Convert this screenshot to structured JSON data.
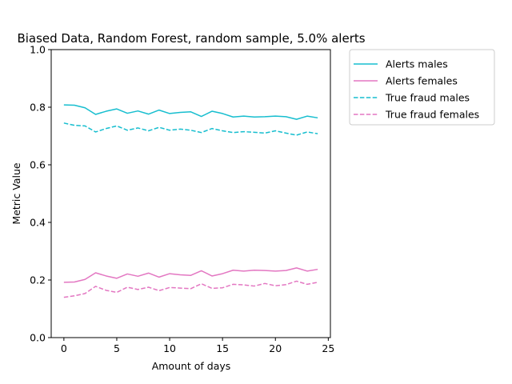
{
  "chart_data": {
    "type": "line",
    "title": "Biased Data, Random Forest, random sample, 5.0% alerts",
    "xlabel": "Amount of days",
    "ylabel": "Metric Value",
    "xlim": [
      -1.2,
      25.2
    ],
    "ylim": [
      0.0,
      1.0
    ],
    "xticks": [
      0,
      5,
      10,
      15,
      20,
      25
    ],
    "yticks": [
      0.0,
      0.2,
      0.4,
      0.6,
      0.8,
      1.0
    ],
    "xtick_labels": [
      "0",
      "5",
      "10",
      "15",
      "20",
      "25"
    ],
    "ytick_labels": [
      "0.0",
      "0.2",
      "0.4",
      "0.6",
      "0.8",
      "1.0"
    ],
    "grid": false,
    "legend_position": "outside-top-right",
    "x": [
      0,
      1,
      2,
      3,
      4,
      5,
      6,
      7,
      8,
      9,
      10,
      11,
      12,
      13,
      14,
      15,
      16,
      17,
      18,
      19,
      20,
      21,
      22,
      23,
      24
    ],
    "series": [
      {
        "name": "Alerts males",
        "color": "#17becf",
        "dash": "solid",
        "values": [
          0.808,
          0.807,
          0.798,
          0.775,
          0.786,
          0.794,
          0.779,
          0.787,
          0.776,
          0.79,
          0.778,
          0.782,
          0.784,
          0.768,
          0.786,
          0.778,
          0.766,
          0.769,
          0.766,
          0.767,
          0.769,
          0.767,
          0.758,
          0.769,
          0.763
        ]
      },
      {
        "name": "Alerts females",
        "color": "#e377c2",
        "dash": "solid",
        "values": [
          0.192,
          0.193,
          0.202,
          0.225,
          0.214,
          0.206,
          0.221,
          0.213,
          0.224,
          0.21,
          0.222,
          0.218,
          0.216,
          0.232,
          0.214,
          0.222,
          0.234,
          0.231,
          0.234,
          0.233,
          0.231,
          0.233,
          0.242,
          0.231,
          0.237
        ]
      },
      {
        "name": "True fraud males",
        "color": "#17becf",
        "dash": "dashed",
        "values": [
          0.745,
          0.737,
          0.735,
          0.714,
          0.726,
          0.735,
          0.72,
          0.728,
          0.718,
          0.73,
          0.72,
          0.724,
          0.72,
          0.712,
          0.726,
          0.718,
          0.712,
          0.715,
          0.713,
          0.71,
          0.718,
          0.71,
          0.703,
          0.714,
          0.708
        ]
      },
      {
        "name": "True fraud females",
        "color": "#e377c2",
        "dash": "dashed",
        "values": [
          0.14,
          0.145,
          0.153,
          0.178,
          0.164,
          0.157,
          0.175,
          0.167,
          0.175,
          0.163,
          0.174,
          0.172,
          0.17,
          0.187,
          0.171,
          0.173,
          0.185,
          0.183,
          0.179,
          0.188,
          0.18,
          0.184,
          0.196,
          0.185,
          0.192
        ]
      }
    ]
  }
}
